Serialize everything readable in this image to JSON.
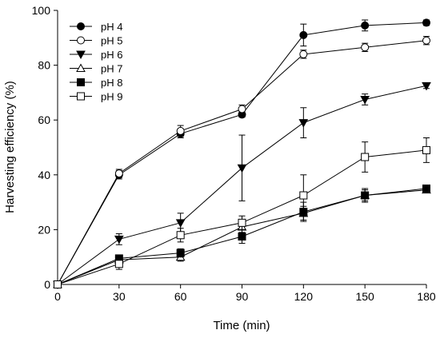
{
  "chart_data": {
    "type": "line",
    "xlabel": "Time (min)",
    "ylabel": "Harvesting efficiency (%)",
    "xlim": [
      0,
      180
    ],
    "ylim": [
      0,
      100
    ],
    "x_ticks": [
      0,
      30,
      60,
      90,
      120,
      150,
      180
    ],
    "y_ticks": [
      0,
      20,
      40,
      60,
      80,
      100
    ],
    "grid": false,
    "legend_position": "top-left",
    "x": [
      0,
      30,
      60,
      90,
      120,
      150,
      180
    ],
    "series": [
      {
        "name": "pH 4",
        "marker": "circle-filled",
        "values": [
          0,
          40.0,
          55.0,
          62.0,
          91.0,
          94.5,
          95.5
        ],
        "errors": [
          0,
          1.5,
          1.5,
          1.0,
          4.0,
          2.0,
          1.0
        ]
      },
      {
        "name": "pH 5",
        "marker": "circle-open",
        "values": [
          0,
          40.5,
          56.0,
          64.0,
          84.0,
          86.5,
          89.0
        ],
        "errors": [
          0,
          1.5,
          2.0,
          1.5,
          1.5,
          1.5,
          1.5
        ]
      },
      {
        "name": "pH 6",
        "marker": "triangle-down-filled",
        "values": [
          0,
          16.5,
          22.5,
          42.5,
          59.0,
          67.5,
          72.5
        ],
        "errors": [
          0,
          2.0,
          3.5,
          12.0,
          5.5,
          2.0,
          1.0
        ]
      },
      {
        "name": "pH 7",
        "marker": "triangle-up-open",
        "values": [
          0,
          9.0,
          10.0,
          21.0,
          26.0,
          32.5,
          34.5
        ],
        "errors": [
          0,
          1.0,
          1.5,
          2.0,
          2.5,
          2.0,
          1.0
        ]
      },
      {
        "name": "pH 8",
        "marker": "square-filled",
        "values": [
          0,
          9.5,
          11.5,
          17.5,
          26.5,
          32.5,
          35.0
        ],
        "errors": [
          0,
          1.0,
          1.5,
          2.5,
          3.5,
          2.5,
          1.0
        ]
      },
      {
        "name": "pH 9",
        "marker": "square-open",
        "values": [
          0,
          7.5,
          18.0,
          22.5,
          32.5,
          46.5,
          49.0
        ],
        "errors": [
          0,
          2.0,
          2.5,
          2.5,
          7.5,
          5.5,
          4.5
        ]
      }
    ]
  }
}
